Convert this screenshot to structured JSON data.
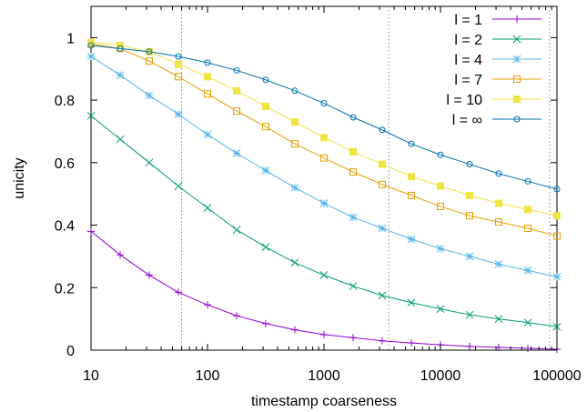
{
  "chart_data": {
    "type": "line",
    "xlabel": "timestamp coarseness",
    "ylabel": "unicity",
    "x_scale": "log",
    "xlim": [
      10,
      100000
    ],
    "ylim": [
      0,
      1.1
    ],
    "x_ticks": [
      10,
      100,
      1000,
      10000,
      100000
    ],
    "x_tick_labels": [
      "10",
      "100",
      "1000",
      "10000",
      "100000"
    ],
    "y_ticks": [
      0,
      0.2,
      0.4,
      0.6,
      0.8,
      1
    ],
    "y_tick_labels": [
      "0",
      "0.2",
      "0.4",
      "0.6",
      "0.8",
      "1"
    ],
    "grid": false,
    "reference_lines_x": [
      60,
      3600,
      86400
    ],
    "legend_position": "top-right",
    "x": [
      10,
      17.8,
      31.6,
      56.2,
      100,
      178,
      316,
      562,
      1000,
      1780,
      3160,
      5620,
      10000,
      17800,
      31600,
      56200,
      100000
    ],
    "series": [
      {
        "name": "l = 1",
        "color": "#9400d3",
        "marker": "plus",
        "values": [
          0.38,
          0.305,
          0.24,
          0.185,
          0.145,
          0.11,
          0.085,
          0.065,
          0.05,
          0.04,
          0.03,
          0.023,
          0.017,
          0.012,
          0.009,
          0.006,
          0.003
        ]
      },
      {
        "name": "l = 2",
        "color": "#009e73",
        "marker": "cross",
        "values": [
          0.75,
          0.675,
          0.6,
          0.525,
          0.455,
          0.385,
          0.33,
          0.28,
          0.24,
          0.205,
          0.175,
          0.152,
          0.132,
          0.113,
          0.1,
          0.088,
          0.075
        ]
      },
      {
        "name": "l = 4",
        "color": "#56b4e9",
        "marker": "star",
        "values": [
          0.94,
          0.88,
          0.815,
          0.755,
          0.69,
          0.63,
          0.575,
          0.52,
          0.47,
          0.425,
          0.39,
          0.355,
          0.325,
          0.3,
          0.275,
          0.255,
          0.235
        ]
      },
      {
        "name": "l = 7",
        "color": "#e69f00",
        "marker": "square-open",
        "values": [
          0.98,
          0.965,
          0.925,
          0.875,
          0.82,
          0.765,
          0.715,
          0.66,
          0.615,
          0.57,
          0.53,
          0.495,
          0.46,
          0.43,
          0.41,
          0.39,
          0.365
        ]
      },
      {
        "name": "l = 10",
        "color": "#f0e442",
        "marker": "square-filled",
        "values": [
          0.985,
          0.975,
          0.955,
          0.915,
          0.875,
          0.83,
          0.78,
          0.73,
          0.68,
          0.635,
          0.595,
          0.555,
          0.525,
          0.495,
          0.47,
          0.45,
          0.43
        ]
      },
      {
        "name": "l = ∞",
        "color": "#0072b2",
        "marker": "circle-open",
        "values": [
          0.975,
          0.965,
          0.955,
          0.94,
          0.92,
          0.895,
          0.865,
          0.83,
          0.79,
          0.745,
          0.705,
          0.66,
          0.625,
          0.595,
          0.565,
          0.54,
          0.515
        ]
      }
    ]
  }
}
